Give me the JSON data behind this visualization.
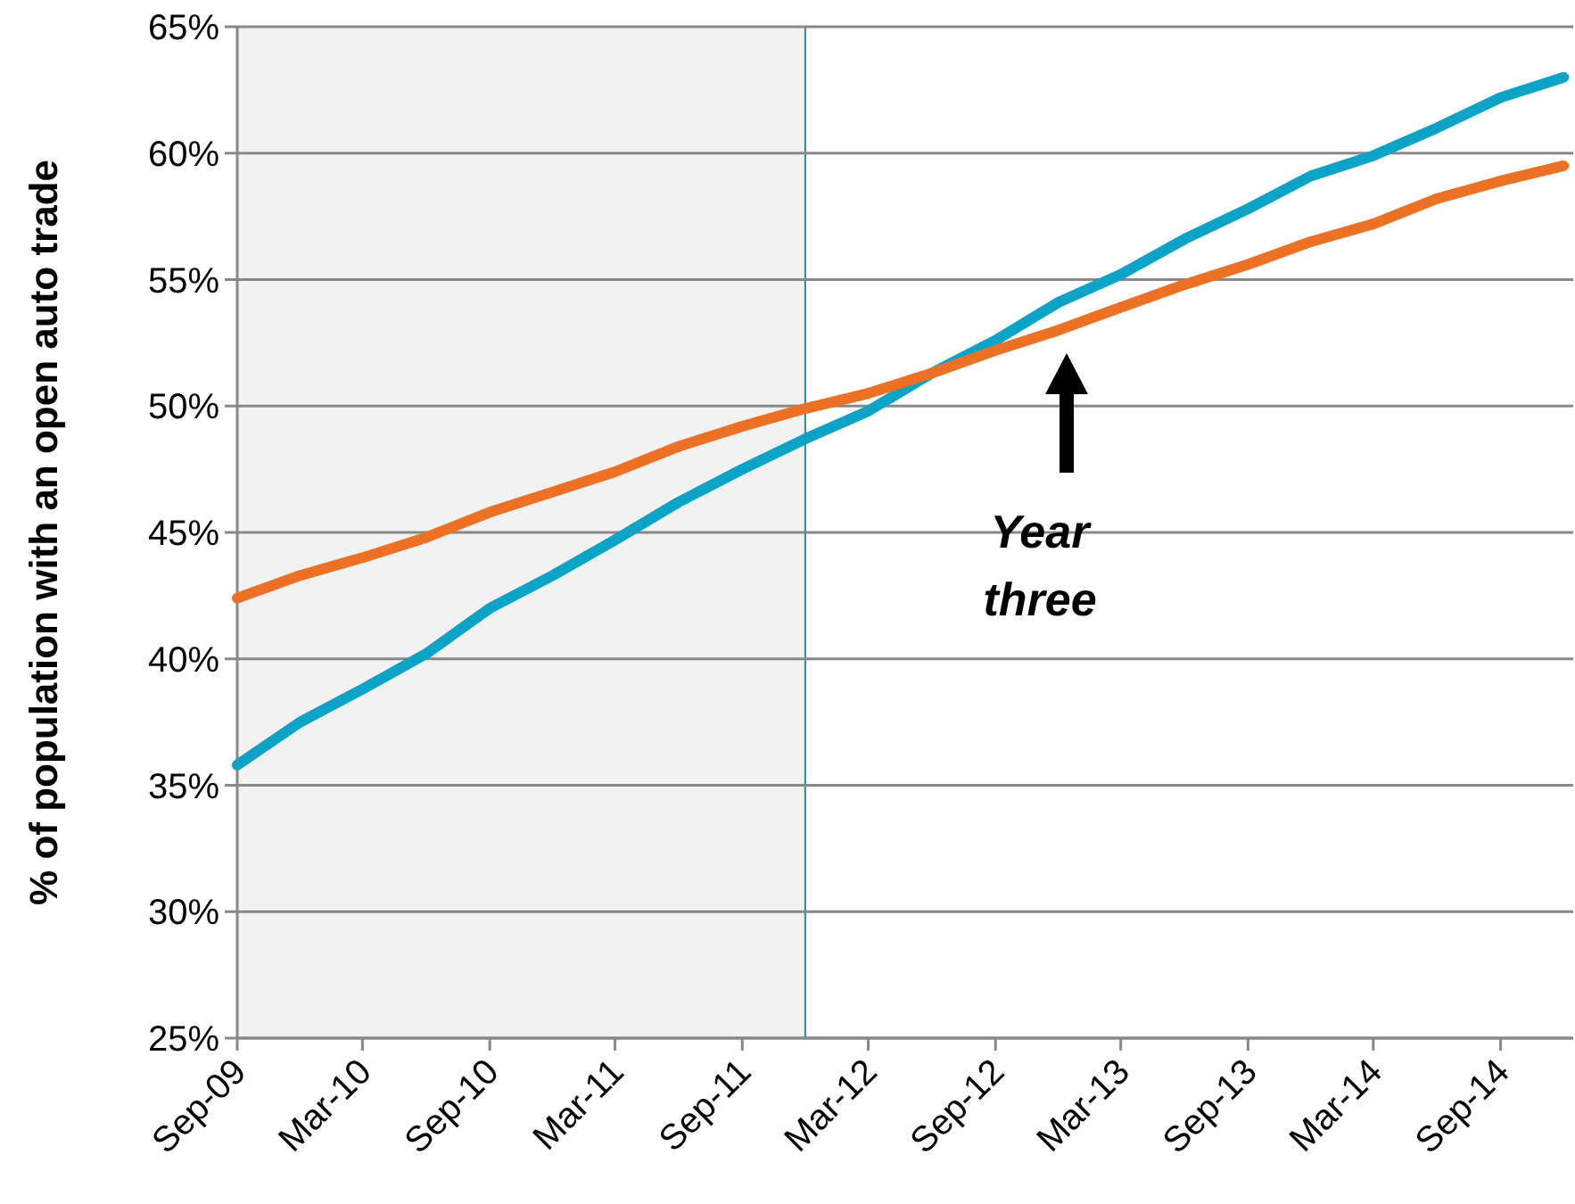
{
  "chart_data": {
    "type": "line",
    "ylabel": "% of population with an open auto trade",
    "x": [
      "2009-09",
      "2009-12",
      "2010-03",
      "2010-06",
      "2010-09",
      "2010-12",
      "2011-03",
      "2011-06",
      "2011-09",
      "2011-12",
      "2012-03",
      "2012-06",
      "2012-09",
      "2012-12",
      "2013-03",
      "2013-06",
      "2013-09",
      "2013-12",
      "2014-03",
      "2014-06",
      "2014-09",
      "2014-12"
    ],
    "series": [
      {
        "color": "#0ba3c6",
        "values": [
          35.8,
          37.5,
          38.8,
          40.2,
          42.0,
          43.3,
          44.7,
          46.2,
          47.5,
          48.7,
          49.8,
          51.3,
          52.6,
          54.1,
          55.2,
          56.6,
          57.8,
          59.1,
          59.9,
          61.0,
          62.2,
          63.0
        ]
      },
      {
        "color": "#ed7125",
        "values": [
          42.4,
          43.3,
          44.0,
          44.8,
          45.8,
          46.6,
          47.4,
          48.4,
          49.2,
          49.9,
          50.5,
          51.3,
          52.2,
          53.0,
          53.9,
          54.8,
          55.6,
          56.5,
          57.2,
          58.2,
          58.9,
          59.5
        ]
      }
    ],
    "xlim": [
      "2009-09",
      "2014-12-15"
    ],
    "xticks": [
      {
        "value": "2009-09",
        "label": "Sep-09"
      },
      {
        "value": "2010-03",
        "label": "Mar-10"
      },
      {
        "value": "2010-09",
        "label": "Sep-10"
      },
      {
        "value": "2011-03",
        "label": "Mar-11"
      },
      {
        "value": "2011-09",
        "label": "Sep-11"
      },
      {
        "value": "2012-03",
        "label": "Mar-12"
      },
      {
        "value": "2012-09",
        "label": "Sep-12"
      },
      {
        "value": "2013-03",
        "label": "Mar-13"
      },
      {
        "value": "2013-09",
        "label": "Sep-13"
      },
      {
        "value": "2014-03",
        "label": "Mar-14"
      },
      {
        "value": "2014-09",
        "label": "Sep-14"
      }
    ],
    "ylim": [
      25,
      65
    ],
    "yticks": [
      {
        "value": 25,
        "label": "25%"
      },
      {
        "value": 30,
        "label": "30%"
      },
      {
        "value": 35,
        "label": "35%"
      },
      {
        "value": 40,
        "label": "40%"
      },
      {
        "value": 45,
        "label": "45%"
      },
      {
        "value": 50,
        "label": "50%"
      },
      {
        "value": 55,
        "label": "55%"
      },
      {
        "value": 60,
        "label": "60%"
      },
      {
        "value": 65,
        "label": "65%"
      }
    ],
    "grid": "y",
    "bands": [
      {
        "axis": "x",
        "from": "2009-09",
        "to": "2011-12",
        "color": "#f2f2f2"
      }
    ],
    "annotations": [
      "Year three"
    ],
    "marker": "none",
    "line_style": "solid"
  }
}
